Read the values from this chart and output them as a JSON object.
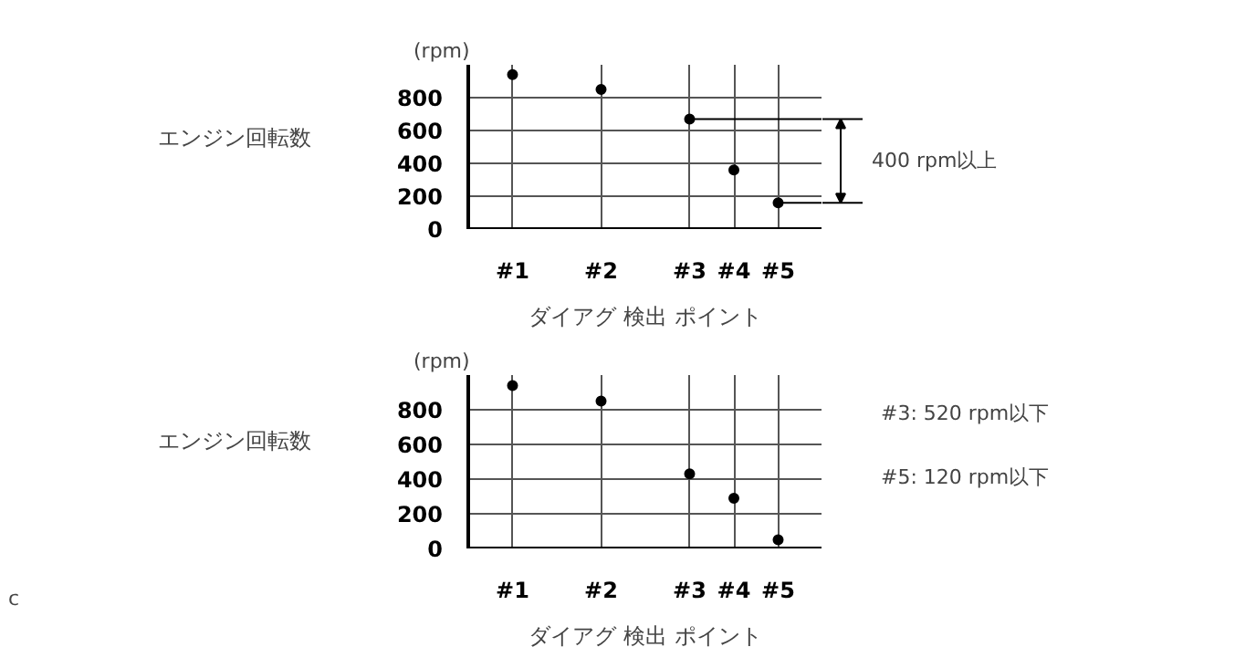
{
  "chart_data": [
    {
      "type": "scatter",
      "title": "エンジン回転数",
      "ylabel": "(rpm)",
      "xlabel": "ダイアグ 検出 ポイント",
      "categories": [
        "#1",
        null,
        "#2",
        null,
        "#3",
        "#4",
        "#5"
      ],
      "values": [
        940,
        null,
        850,
        null,
        670,
        360,
        160
      ],
      "color": "#000000",
      "marker": "circle",
      "ylim": [
        0,
        1000
      ],
      "yticks": [
        0,
        200,
        400,
        600,
        800
      ],
      "grid": true,
      "ref_lines": [
        {
          "axis": "y",
          "value": 670
        },
        {
          "axis": "y",
          "value": 160
        }
      ],
      "annotations": [
        "400 rpm以上"
      ]
    },
    {
      "type": "scatter",
      "title": "エンジン回転数",
      "ylabel": "(rpm)",
      "xlabel": "ダイアグ 検出 ポイント",
      "categories": [
        "#1",
        null,
        "#2",
        null,
        "#3",
        "#4",
        "#5"
      ],
      "values": [
        940,
        null,
        850,
        null,
        430,
        290,
        50
      ],
      "color": "#000000",
      "marker": "circle",
      "ylim": [
        0,
        1000
      ],
      "yticks": [
        0,
        200,
        400,
        600,
        800
      ],
      "grid": true,
      "annotations": [
        "#3: 520 rpm以下",
        "#5: 120 rpm以下",
        "c"
      ]
    }
  ]
}
